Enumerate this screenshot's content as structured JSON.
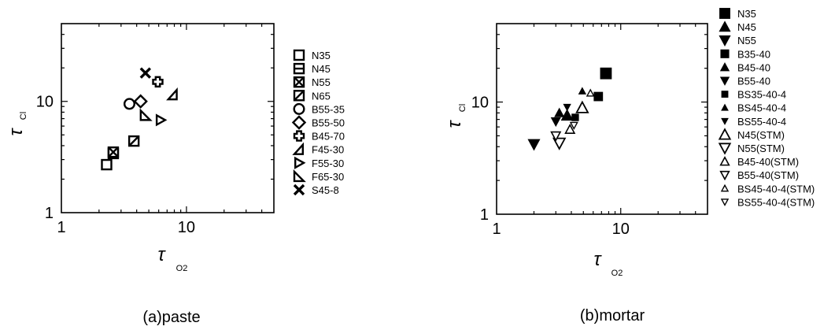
{
  "chart_data": [
    {
      "type": "scatter",
      "caption": "(a)paste",
      "xlabel": "τ",
      "xlabel_sub": "O2",
      "ylabel": "τ",
      "ylabel_sub": "Cl",
      "x_scale": "log",
      "y_scale": "log",
      "xlim": [
        1,
        50
      ],
      "ylim": [
        1,
        50
      ],
      "x_ticks": [
        {
          "value": 1,
          "label": "1"
        },
        {
          "value": 10,
          "label": "10"
        }
      ],
      "y_ticks": [
        {
          "value": 1,
          "label": "1"
        },
        {
          "value": 10,
          "label": "10"
        }
      ],
      "grid": false,
      "legend_position": "right",
      "series": [
        {
          "name": "N35",
          "marker": "square",
          "points": [
            [
              2.3,
              2.7
            ]
          ]
        },
        {
          "name": "N45",
          "marker": "square-bar",
          "points": [
            [
              2.6,
              3.4
            ]
          ]
        },
        {
          "name": "N55",
          "marker": "square-x",
          "points": [
            [
              2.6,
              3.5
            ]
          ]
        },
        {
          "name": "N65",
          "marker": "square-slash",
          "points": [
            [
              3.8,
              4.4
            ]
          ]
        },
        {
          "name": "B55-35",
          "marker": "circle",
          "points": [
            [
              3.5,
              9.5
            ]
          ]
        },
        {
          "name": "B55-50",
          "marker": "diamond",
          "points": [
            [
              4.3,
              10.0
            ]
          ]
        },
        {
          "name": "B45-70",
          "marker": "plus",
          "points": [
            [
              5.9,
              15.0
            ]
          ]
        },
        {
          "name": "F45-30",
          "marker": "tri-left",
          "points": [
            [
              7.8,
              11.5
            ]
          ]
        },
        {
          "name": "F55-30",
          "marker": "tri-right",
          "points": [
            [
              6.2,
              6.8
            ]
          ]
        },
        {
          "name": "F65-30",
          "marker": "tri-corner",
          "points": [
            [
              4.7,
              7.5
            ]
          ]
        },
        {
          "name": "S45-8",
          "marker": "cross",
          "points": [
            [
              4.7,
              18.0
            ]
          ]
        }
      ]
    },
    {
      "type": "scatter",
      "caption": "(b)mortar",
      "xlabel": "τ",
      "xlabel_sub": "O2",
      "ylabel": "τ",
      "ylabel_sub": "Cl",
      "x_scale": "log",
      "y_scale": "log",
      "xlim": [
        1,
        50
      ],
      "ylim": [
        1,
        50
      ],
      "x_ticks": [
        {
          "value": 1,
          "label": "1"
        },
        {
          "value": 10,
          "label": "10"
        }
      ],
      "y_ticks": [
        {
          "value": 1,
          "label": "1"
        },
        {
          "value": 10,
          "label": "10"
        }
      ],
      "grid": false,
      "legend_position": "right",
      "series": [
        {
          "name": "N35",
          "marker": "square-filled-lg",
          "points": [
            [
              7.6,
              18.0
            ]
          ]
        },
        {
          "name": "N45",
          "marker": "tri-up-filled-lg",
          "points": [
            [
              3.7,
              7.6
            ]
          ]
        },
        {
          "name": "N55",
          "marker": "tri-down-filled-lg",
          "points": [
            [
              2.0,
              4.2
            ]
          ]
        },
        {
          "name": "B35-40",
          "marker": "square-filled",
          "points": [
            [
              6.6,
              11.2
            ]
          ]
        },
        {
          "name": "B45-40",
          "marker": "tri-up-filled",
          "points": [
            [
              3.2,
              8.0
            ]
          ]
        },
        {
          "name": "B55-40",
          "marker": "tri-down-filled",
          "points": [
            [
              3.0,
              6.7
            ]
          ]
        },
        {
          "name": "BS35-40-4",
          "marker": "square-filled-sm",
          "points": [
            [
              4.3,
              7.3
            ]
          ]
        },
        {
          "name": "BS45-40-4",
          "marker": "tri-up-filled-sm",
          "points": [
            [
              4.9,
              12.5
            ]
          ]
        },
        {
          "name": "BS55-40-4",
          "marker": "tri-down-filled-sm",
          "points": [
            [
              3.7,
              9.0
            ]
          ]
        },
        {
          "name": "N45(STM)",
          "marker": "tri-up-open-lg",
          "points": [
            [
              4.9,
              8.9
            ]
          ]
        },
        {
          "name": "N55(STM)",
          "marker": "tri-down-open-lg",
          "points": [
            [
              3.2,
              4.3
            ]
          ]
        },
        {
          "name": "B45-40(STM)",
          "marker": "tri-up-open",
          "points": [
            [
              3.9,
              5.7
            ]
          ]
        },
        {
          "name": "B55-40(STM)",
          "marker": "tri-down-open",
          "points": [
            [
              3.0,
              5.0
            ]
          ]
        },
        {
          "name": "BS45-40-4(STM)",
          "marker": "tri-up-open-sm",
          "points": [
            [
              5.7,
              12.0
            ]
          ]
        },
        {
          "name": "BS55-40-4(STM)",
          "marker": "tri-down-open-sm",
          "points": [
            [
              4.2,
              6.2
            ]
          ]
        }
      ]
    }
  ]
}
